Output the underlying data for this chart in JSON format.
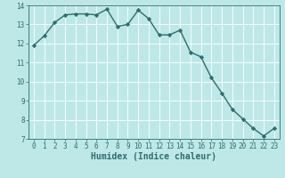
{
  "x": [
    0,
    1,
    2,
    3,
    4,
    5,
    6,
    7,
    8,
    9,
    10,
    11,
    12,
    13,
    14,
    15,
    16,
    17,
    18,
    19,
    20,
    21,
    22,
    23
  ],
  "y": [
    11.9,
    12.4,
    13.1,
    13.5,
    13.55,
    13.55,
    13.5,
    13.8,
    12.9,
    13.0,
    13.75,
    13.3,
    12.45,
    12.45,
    12.7,
    11.55,
    11.3,
    10.2,
    9.4,
    8.55,
    8.05,
    7.55,
    7.15,
    7.55
  ],
  "line_color": "#2d6e6e",
  "marker": "D",
  "markersize": 2.2,
  "linewidth": 1.0,
  "bg_color": "#bee8e8",
  "grid_color": "#ffffff",
  "xlabel": "Humidex (Indice chaleur)",
  "xlim": [
    -0.5,
    23.5
  ],
  "ylim": [
    7,
    14
  ],
  "yticks": [
    7,
    8,
    9,
    10,
    11,
    12,
    13,
    14
  ],
  "xticks": [
    0,
    1,
    2,
    3,
    4,
    5,
    6,
    7,
    8,
    9,
    10,
    11,
    12,
    13,
    14,
    15,
    16,
    17,
    18,
    19,
    20,
    21,
    22,
    23
  ],
  "tick_fontsize": 5.5,
  "xlabel_fontsize": 7.0,
  "axis_color": "#2d6e6e",
  "grid_linewidth": 0.6
}
